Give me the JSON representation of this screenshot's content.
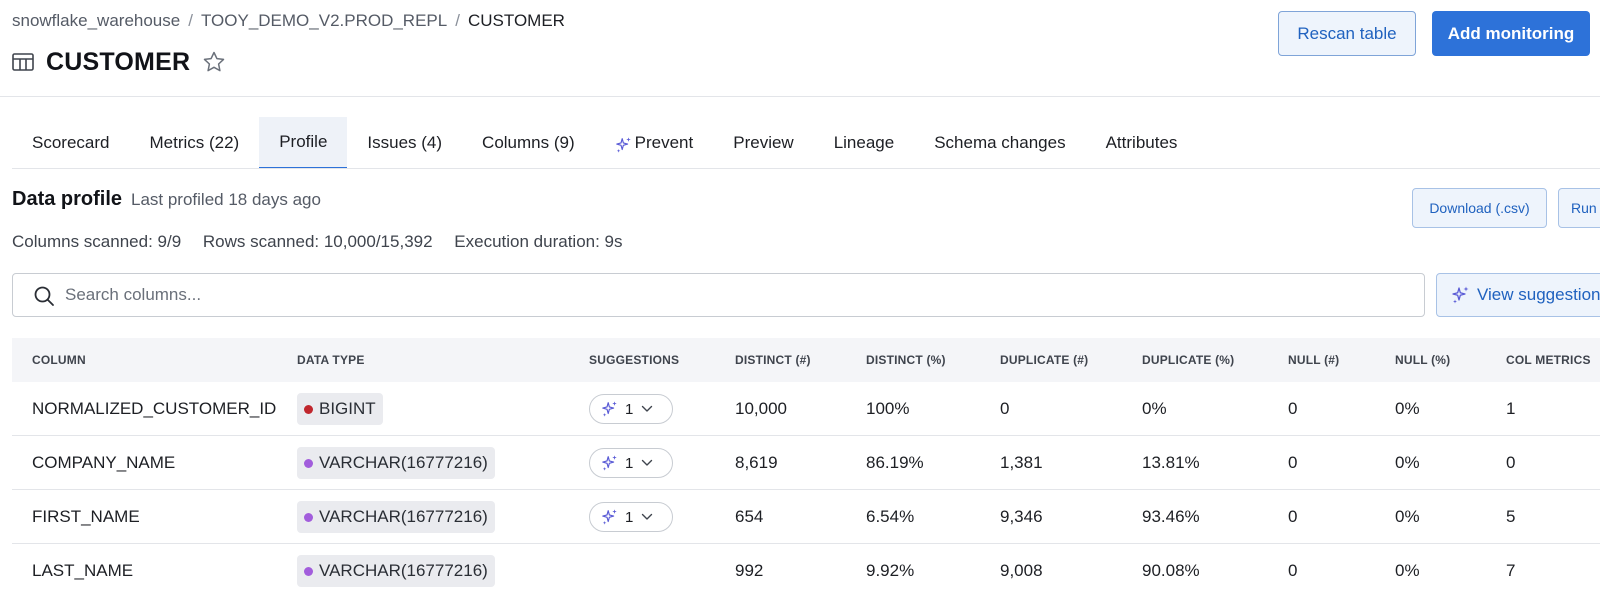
{
  "breadcrumb": {
    "items": [
      "snowflake_warehouse",
      "TOOY_DEMO_V2.PROD_REPL",
      "CUSTOMER"
    ],
    "separator": "/"
  },
  "page": {
    "title": "CUSTOMER"
  },
  "actions": {
    "rescan": "Rescan table",
    "add_monitoring": "Add monitoring"
  },
  "tabs": [
    {
      "label": "Scorecard",
      "active": false
    },
    {
      "label": "Metrics (22)",
      "active": false
    },
    {
      "label": "Profile",
      "active": true
    },
    {
      "label": "Issues (4)",
      "active": false
    },
    {
      "label": "Columns (9)",
      "active": false
    },
    {
      "label": "Prevent",
      "active": false,
      "icon": "sparkle-icon"
    },
    {
      "label": "Preview",
      "active": false
    },
    {
      "label": "Lineage",
      "active": false
    },
    {
      "label": "Schema changes",
      "active": false
    },
    {
      "label": "Attributes",
      "active": false
    }
  ],
  "profile": {
    "title": "Data profile",
    "last_profiled": "Last profiled 18 days ago",
    "columns_scanned": "Columns scanned: 9/9",
    "rows_scanned": "Rows scanned: 10,000/15,392",
    "execution_duration": "Execution duration: 9s",
    "download_label": "Download (.csv)",
    "run_label": "Run",
    "view_suggestions_label": "View suggestions"
  },
  "search": {
    "placeholder": "Search columns...",
    "value": ""
  },
  "table": {
    "headers": {
      "column": "COLUMN",
      "data_type": "DATA TYPE",
      "suggestions": "SUGGESTIONS",
      "distinct_n": "DISTINCT (#)",
      "distinct_pct": "DISTINCT (%)",
      "duplicate_n": "DUPLICATE (#)",
      "duplicate_pct": "DUPLICATE (%)",
      "null_n": "NULL (#)",
      "null_pct": "NULL (%)",
      "col_metrics": "COL METRICS"
    },
    "rows": [
      {
        "column": "NORMALIZED_CUSTOMER_ID",
        "data_type": "BIGINT",
        "type_color": "#c0262d",
        "suggestions": "1",
        "distinct_n": "10,000",
        "distinct_pct": "100%",
        "duplicate_n": "0",
        "duplicate_pct": "0%",
        "null_n": "0",
        "null_pct": "0%",
        "col_metrics": "1"
      },
      {
        "column": "COMPANY_NAME",
        "data_type": "VARCHAR(16777216)",
        "type_color": "#a25ddc",
        "suggestions": "1",
        "distinct_n": "8,619",
        "distinct_pct": "86.19%",
        "duplicate_n": "1,381",
        "duplicate_pct": "13.81%",
        "null_n": "0",
        "null_pct": "0%",
        "col_metrics": "0"
      },
      {
        "column": "FIRST_NAME",
        "data_type": "VARCHAR(16777216)",
        "type_color": "#a25ddc",
        "suggestions": "1",
        "distinct_n": "654",
        "distinct_pct": "6.54%",
        "duplicate_n": "9,346",
        "duplicate_pct": "93.46%",
        "null_n": "0",
        "null_pct": "0%",
        "col_metrics": "5"
      },
      {
        "column": "LAST_NAME",
        "data_type": "VARCHAR(16777216)",
        "type_color": "#a25ddc",
        "suggestions": "",
        "distinct_n": "992",
        "distinct_pct": "9.92%",
        "duplicate_n": "9,008",
        "duplicate_pct": "90.08%",
        "null_n": "0",
        "null_pct": "0%",
        "col_metrics": "7"
      }
    ]
  },
  "colors": {
    "accent": "#2d72d9",
    "sparkle": "#5a5bd6"
  }
}
